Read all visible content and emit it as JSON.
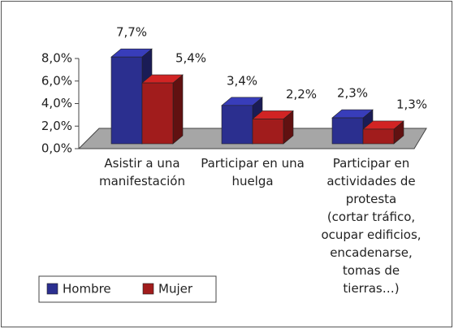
{
  "chart_data": {
    "type": "bar",
    "categories": [
      "Asistir a una manifestación",
      "Participar en una huelga",
      "Participar en actividades de protesta\n(cortar tráfico, ocupar edificios, encadenarse, tomas de tierras…)"
    ],
    "series": [
      {
        "name": "Hombre",
        "color": "#2b2f8f",
        "values": [
          7.7,
          3.4,
          2.3
        ],
        "value_labels": [
          "7,7%",
          "3,4%",
          "2,3%"
        ]
      },
      {
        "name": "Mujer",
        "color": "#a11c1c",
        "values": [
          5.4,
          2.2,
          1.3
        ],
        "value_labels": [
          "5,4%",
          "2,2%",
          "1,3%"
        ]
      }
    ],
    "ylim": [
      0,
      8
    ],
    "yticks": [
      {
        "value": 0,
        "label": "0,0%"
      },
      {
        "value": 2,
        "label": "2,0%"
      },
      {
        "value": 4,
        "label": "4,0%"
      },
      {
        "value": 6,
        "label": "6,0%"
      },
      {
        "value": 8,
        "label": "8,0%"
      }
    ],
    "legend": "bottom-left"
  }
}
